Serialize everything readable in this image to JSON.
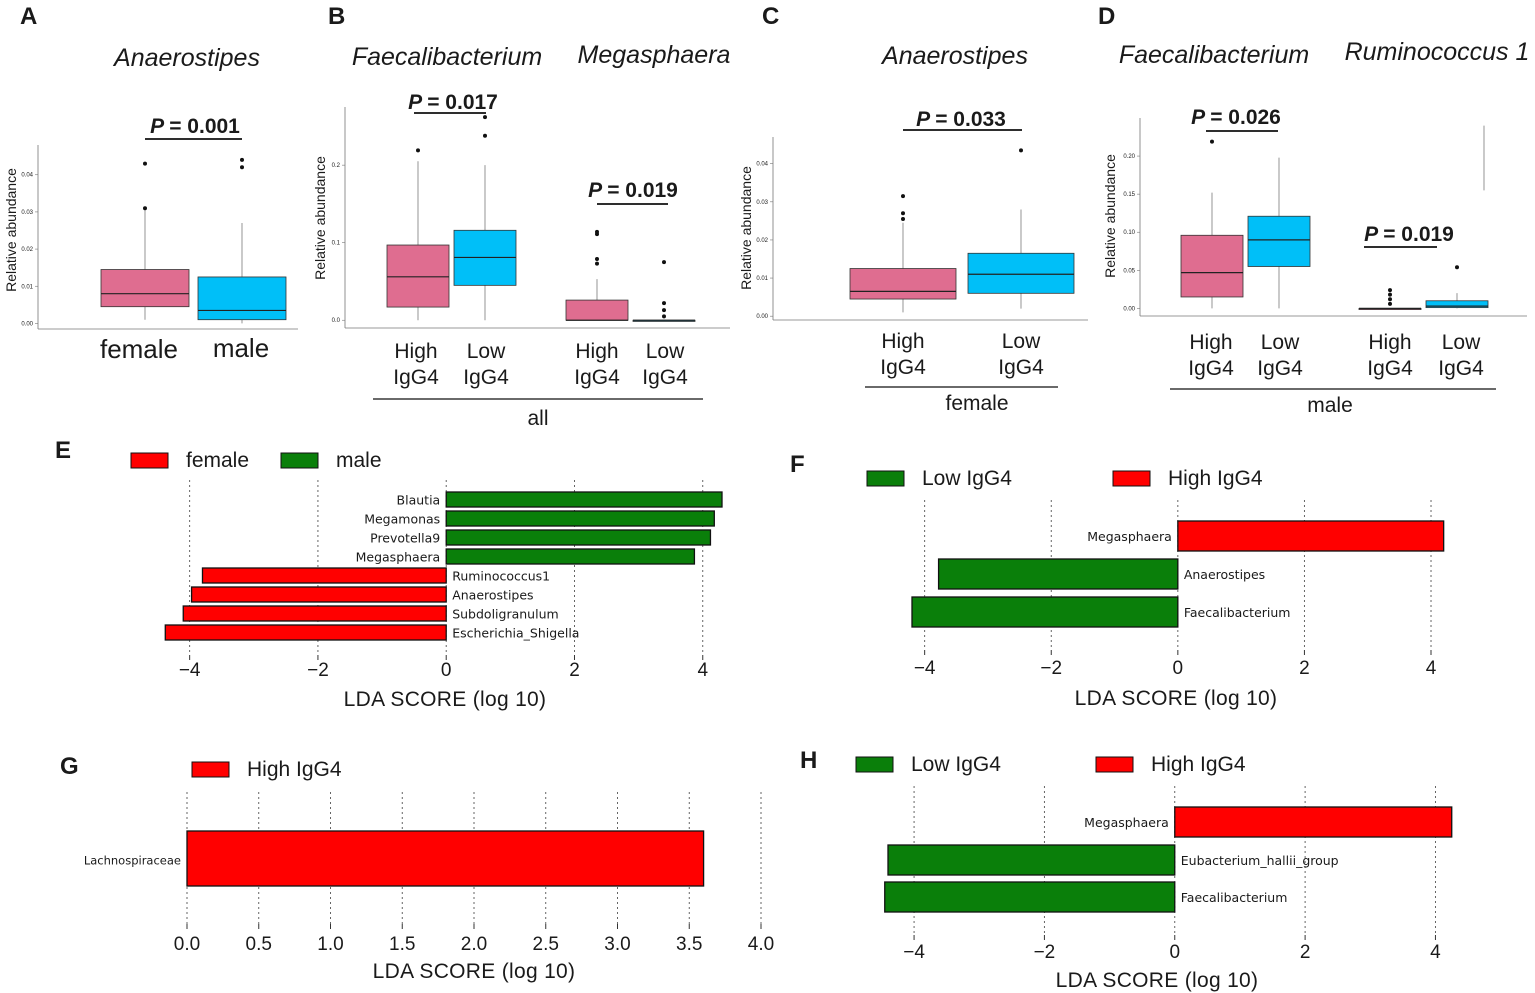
{
  "colors": {
    "pink": "#df6d90",
    "cyan": "#00bff8",
    "red": "#ff0000",
    "green": "#0a7f0a"
  },
  "panel_letters": [
    "A",
    "B",
    "C",
    "D",
    "E",
    "F",
    "G",
    "H"
  ],
  "common": {
    "ylabel": "Relative abundance",
    "high": "High",
    "low": "Low",
    "igg4": "IgG4",
    "p_letter": "P",
    "lda_axis": "LDA SCORE (log 10)"
  },
  "chart_data": [
    {
      "panel": "A",
      "type": "box",
      "title": "Anaerostipes",
      "ylabel": "Relative abundance",
      "yticks": [
        "0.00",
        "0.01",
        "0.02",
        "0.03",
        "0.04"
      ],
      "ylim": [
        -0.0015,
        0.048
      ],
      "categories": [
        "female",
        "male"
      ],
      "boxes": [
        {
          "q1": 0.0045,
          "median": 0.008,
          "q3": 0.0145,
          "lo": 0.001,
          "hi": 0.0305,
          "out": [
            0.031,
            0.043
          ],
          "color": "pink"
        },
        {
          "q1": 0.001,
          "median": 0.0035,
          "q3": 0.0125,
          "lo": 0.0,
          "hi": 0.027,
          "out": [
            0.042,
            0.044
          ],
          "color": "cyan"
        }
      ],
      "p": "= 0.001"
    },
    {
      "panel": "B",
      "type": "box",
      "titles": [
        "Faecalibacterium",
        "Megasphaera"
      ],
      "ylabel": "Relative abundance",
      "yticks": [
        "0.0",
        "0.1",
        "0.2"
      ],
      "ylim": [
        -0.01,
        0.275
      ],
      "group_label": "all",
      "boxes": [
        {
          "q1": 0.017,
          "median": 0.056,
          "q3": 0.097,
          "lo": 0.0,
          "hi": 0.205,
          "out": [
            0.219
          ],
          "color": "pink"
        },
        {
          "q1": 0.045,
          "median": 0.081,
          "q3": 0.116,
          "lo": 0.0,
          "hi": 0.2,
          "out": [
            0.238,
            0.262
          ],
          "color": "cyan"
        },
        {
          "q1": 0.0,
          "median": 0.0,
          "q3": 0.026,
          "lo": 0.0,
          "hi": 0.053,
          "out": [
            0.073,
            0.079,
            0.111,
            0.114
          ],
          "color": "pink"
        },
        {
          "q1": 0.0,
          "median": 0.0,
          "q3": 0.0,
          "lo": 0.0,
          "hi": 0.0,
          "out": [
            0.005,
            0.013,
            0.022,
            0.075
          ],
          "color": "cyan"
        }
      ],
      "p": [
        "= 0.017",
        "= 0.019"
      ]
    },
    {
      "panel": "C",
      "type": "box",
      "title": "Anaerostipes",
      "ylabel": "Relative abundance",
      "yticks": [
        "0.00",
        "0.01",
        "0.02",
        "0.03",
        "0.04"
      ],
      "ylim": [
        -0.001,
        0.047
      ],
      "group_label": "female",
      "boxes": [
        {
          "q1": 0.0045,
          "median": 0.0065,
          "q3": 0.0125,
          "lo": 0.001,
          "hi": 0.0245,
          "out": [
            0.0255,
            0.027,
            0.0315
          ],
          "color": "pink"
        },
        {
          "q1": 0.006,
          "median": 0.011,
          "q3": 0.0165,
          "lo": 0.002,
          "hi": 0.028,
          "out": [
            0.0435
          ],
          "color": "cyan"
        }
      ],
      "p": "= 0.033"
    },
    {
      "panel": "D",
      "type": "box",
      "titles": [
        "Faecalibacterium",
        "Ruminococcus 1"
      ],
      "ylabel": "Relative abundance",
      "yticks": [
        "0.00",
        "0.05",
        "0.10",
        "0.15",
        "0.20"
      ],
      "ylim": [
        -0.01,
        0.25
      ],
      "group_label": "male",
      "boxes": [
        {
          "q1": 0.015,
          "median": 0.047,
          "q3": 0.096,
          "lo": 0.0,
          "hi": 0.152,
          "out": [
            0.219
          ],
          "color": "pink"
        },
        {
          "q1": 0.055,
          "median": 0.09,
          "q3": 0.121,
          "lo": 0.0,
          "hi": 0.198,
          "out": [],
          "color": "cyan"
        },
        {
          "q1": 0.0,
          "median": 0.0,
          "q3": 0.0,
          "lo": 0.0,
          "hi": 0.0,
          "out": [
            0.006,
            0.012,
            0.018,
            0.024
          ],
          "color": "pink"
        },
        {
          "q1": 0.001,
          "median": 0.003,
          "q3": 0.01,
          "lo": 0.0,
          "hi": 0.02,
          "out": [
            0.054
          ],
          "color": "cyan"
        }
      ],
      "extra_whisker": [
        0.155,
        0.24
      ],
      "p": [
        "= 0.026",
        "= 0.019"
      ]
    },
    {
      "panel": "E",
      "type": "bar",
      "orientation": "horizontal",
      "legend": [
        {
          "label": "female",
          "color": "red"
        },
        {
          "label": "male",
          "color": "green"
        }
      ],
      "xlim": [
        -4.4,
        4.3
      ],
      "xticks": [
        -4,
        -2,
        0,
        2,
        4
      ],
      "xlabel": "LDA SCORE (log 10)",
      "bars": [
        {
          "label": "Blautia",
          "value": 4.3,
          "color": "green"
        },
        {
          "label": "Megamonas",
          "value": 4.18,
          "color": "green"
        },
        {
          "label": "Prevotella9",
          "value": 4.12,
          "color": "green"
        },
        {
          "label": "Megasphaera",
          "value": 3.87,
          "color": "green"
        },
        {
          "label": "Ruminococcus1",
          "value": -3.8,
          "color": "red"
        },
        {
          "label": "Anaerostipes",
          "value": -3.97,
          "color": "red"
        },
        {
          "label": "Subdoligranulum",
          "value": -4.1,
          "color": "red"
        },
        {
          "label": "Escherichia_Shigella",
          "value": -4.38,
          "color": "red"
        }
      ]
    },
    {
      "panel": "F",
      "type": "bar",
      "orientation": "horizontal",
      "legend": [
        {
          "label": "Low IgG4",
          "color": "green"
        },
        {
          "label": "High IgG4",
          "color": "red"
        }
      ],
      "xlim": [
        -4.2,
        4.3
      ],
      "xticks": [
        -4,
        -2,
        0,
        2,
        4
      ],
      "xlabel": "LDA SCORE (log 10)",
      "bars": [
        {
          "label": "Megasphaera",
          "value": 4.2,
          "color": "red"
        },
        {
          "label": "Anaerostipes",
          "value": -3.78,
          "color": "green"
        },
        {
          "label": "Faecalibacterium",
          "value": -4.2,
          "color": "green"
        }
      ]
    },
    {
      "panel": "G",
      "type": "bar",
      "orientation": "horizontal",
      "legend": [
        {
          "label": "High IgG4",
          "color": "red"
        }
      ],
      "xlim": [
        0,
        4.0
      ],
      "xticks": [
        0.0,
        0.5,
        1.0,
        1.5,
        2.0,
        2.5,
        3.0,
        3.5,
        4.0
      ],
      "xlabel": "LDA SCORE (log 10)",
      "bars": [
        {
          "label": "Lachnospiraceae",
          "value": 3.6,
          "color": "red"
        }
      ]
    },
    {
      "panel": "H",
      "type": "bar",
      "orientation": "horizontal",
      "legend": [
        {
          "label": "Low IgG4",
          "color": "green"
        },
        {
          "label": "High IgG4",
          "color": "red"
        }
      ],
      "xlim": [
        -4.4,
        4.3
      ],
      "xticks": [
        -4,
        -2,
        0,
        2,
        4
      ],
      "xlabel": "LDA SCORE (log 10)",
      "bars": [
        {
          "label": "Megasphaera",
          "value": 4.25,
          "color": "red"
        },
        {
          "label": "Eubacterium_hallii_group",
          "value": -4.4,
          "color": "green"
        },
        {
          "label": "Faecalibacterium",
          "value": -4.45,
          "color": "green"
        }
      ]
    }
  ]
}
